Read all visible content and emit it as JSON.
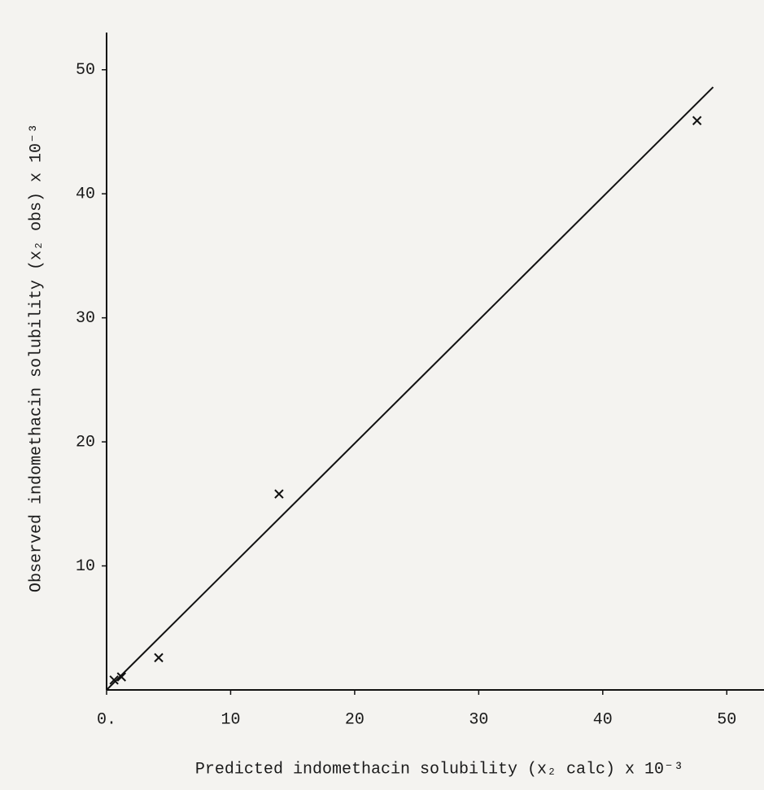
{
  "chart_data": {
    "type": "scatter",
    "xlabel": "Predicted indomethacin solubility (x₂ calc) x 10⁻³",
    "ylabel": "Observed indomethacin solubility (x₂ obs) x 10⁻³",
    "xlim": [
      0,
      53
    ],
    "ylim": [
      0,
      53
    ],
    "xticks": [
      {
        "value": 0,
        "label": "0."
      },
      10,
      20,
      30,
      40,
      50
    ],
    "yticks": [
      10,
      20,
      30,
      40,
      50
    ],
    "color": "#111111",
    "series": [
      {
        "kind": "markers",
        "x": [
          0.6,
          1.2,
          4.2,
          13.9,
          47.6
        ],
        "values": [
          0.8,
          1.05,
          2.6,
          15.8,
          45.9
        ]
      },
      {
        "kind": "line",
        "x": [
          0,
          48.9
        ],
        "values": [
          0,
          48.6
        ]
      }
    ]
  }
}
